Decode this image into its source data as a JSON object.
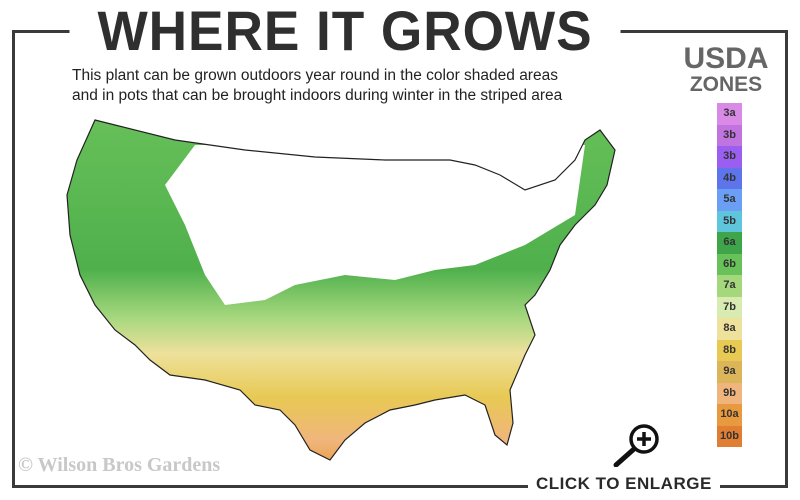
{
  "header": {
    "title": "WHERE IT GROWS",
    "subtitle_line1": "This plant can be grown outdoors year round in the color shaded areas",
    "subtitle_line2": "and in pots that can be brought indoors during winter in the striped area"
  },
  "legend": {
    "title_line1": "USDA",
    "title_line2": "ZONES",
    "zones": [
      {
        "label": "3a",
        "color": "#d98ae6"
      },
      {
        "label": "3b",
        "color": "#c173e0"
      },
      {
        "label": "3b",
        "color": "#9a5ff0"
      },
      {
        "label": "4b",
        "color": "#5d74ea"
      },
      {
        "label": "5a",
        "color": "#6a9ff5"
      },
      {
        "label": "5b",
        "color": "#5ec5dd"
      },
      {
        "label": "6a",
        "color": "#3ea54a"
      },
      {
        "label": "6b",
        "color": "#69c15a"
      },
      {
        "label": "7a",
        "color": "#a5d77d"
      },
      {
        "label": "7b",
        "color": "#d8ebb0"
      },
      {
        "label": "8a",
        "color": "#ede19c"
      },
      {
        "label": "8b",
        "color": "#e8c954"
      },
      {
        "label": "9a",
        "color": "#dcb45a"
      },
      {
        "label": "9b",
        "color": "#f0b57c"
      },
      {
        "label": "10a",
        "color": "#ea9a3e"
      },
      {
        "label": "10b",
        "color": "#e07f33"
      }
    ]
  },
  "footer": {
    "watermark": "© Wilson Bros Gardens",
    "enlarge_label": "CLICK TO ENLARGE",
    "zoom_icon": "magnifier-plus-icon"
  }
}
